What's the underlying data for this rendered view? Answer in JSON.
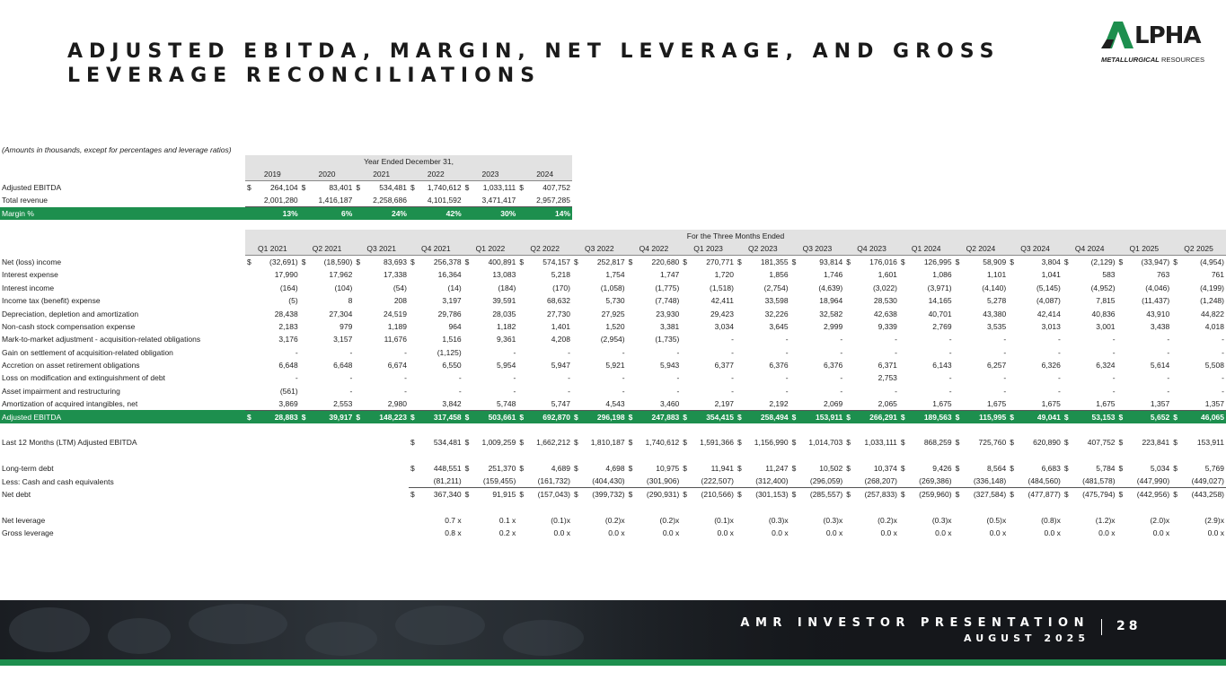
{
  "header": {
    "title": "ADJUSTED EBITDA, MARGIN, NET LEVERAGE, AND GROSS LEVERAGE RECONCILIATIONS",
    "logo_word": "LPHA",
    "logo_sub_bold": "METALLURGICAL",
    "logo_sub_rest": " RESOURCES"
  },
  "note": "(Amounts in thousands, except for percentages and leverage ratios)",
  "annual": {
    "heading": "Year Ended December 31,",
    "years": [
      "2019",
      "2020",
      "2021",
      "2022",
      "2023",
      "2024"
    ],
    "rows": [
      {
        "label": "Adjusted EBITDA",
        "dollar": true,
        "values": [
          "264,104",
          "83,401",
          "534,481",
          "1,740,612",
          "1,033,111",
          "407,752"
        ]
      },
      {
        "label": "Total revenue",
        "dollar": false,
        "values": [
          "2,001,280",
          "1,416,187",
          "2,258,686",
          "4,101,592",
          "3,471,417",
          "2,957,285"
        ]
      }
    ],
    "margin": {
      "label": "Margin %",
      "values": [
        "13%",
        "6%",
        "24%",
        "42%",
        "30%",
        "14%"
      ]
    }
  },
  "quarterly": {
    "heading": "For the Three Months Ended",
    "quarters": [
      "Q1 2021",
      "Q2 2021",
      "Q3 2021",
      "Q4 2021",
      "Q1 2022",
      "Q2 2022",
      "Q3 2022",
      "Q4 2022",
      "Q1 2023",
      "Q2 2023",
      "Q3 2023",
      "Q4 2023",
      "Q1 2024",
      "Q2 2024",
      "Q3 2024",
      "Q4 2024",
      "Q1 2025",
      "Q2 2025"
    ],
    "rows": [
      {
        "label": "Net (loss) income",
        "dollar": true,
        "values": [
          "(32,691)",
          "(18,590)",
          "83,693",
          "256,378",
          "400,891",
          "574,157",
          "252,817",
          "220,680",
          "270,771",
          "181,355",
          "93,814",
          "176,016",
          "126,995",
          "58,909",
          "3,804",
          "(2,129)",
          "(33,947)",
          "(4,954)"
        ]
      },
      {
        "label": "Interest expense",
        "values": [
          "17,990",
          "17,962",
          "17,338",
          "16,364",
          "13,083",
          "5,218",
          "1,754",
          "1,747",
          "1,720",
          "1,856",
          "1,746",
          "1,601",
          "1,086",
          "1,101",
          "1,041",
          "583",
          "763",
          "761"
        ]
      },
      {
        "label": "Interest income",
        "values": [
          "(164)",
          "(104)",
          "(54)",
          "(14)",
          "(184)",
          "(170)",
          "(1,058)",
          "(1,775)",
          "(1,518)",
          "(2,754)",
          "(4,639)",
          "(3,022)",
          "(3,971)",
          "(4,140)",
          "(5,145)",
          "(4,952)",
          "(4,046)",
          "(4,199)"
        ]
      },
      {
        "label": "Income tax (benefit) expense",
        "values": [
          "(5)",
          "8",
          "208",
          "3,197",
          "39,591",
          "68,632",
          "5,730",
          "(7,748)",
          "42,411",
          "33,598",
          "18,964",
          "28,530",
          "14,165",
          "5,278",
          "(4,087)",
          "7,815",
          "(11,437)",
          "(1,248)"
        ]
      },
      {
        "label": "Depreciation, depletion and amortization",
        "values": [
          "28,438",
          "27,304",
          "24,519",
          "29,786",
          "28,035",
          "27,730",
          "27,925",
          "23,930",
          "29,423",
          "32,226",
          "32,582",
          "42,638",
          "40,701",
          "43,380",
          "42,414",
          "40,836",
          "43,910",
          "44,822"
        ]
      },
      {
        "label": "Non-cash stock compensation expense",
        "values": [
          "2,183",
          "979",
          "1,189",
          "964",
          "1,182",
          "1,401",
          "1,520",
          "3,381",
          "3,034",
          "3,645",
          "2,999",
          "9,339",
          "2,769",
          "3,535",
          "3,013",
          "3,001",
          "3,438",
          "4,018"
        ]
      },
      {
        "label": "Mark-to-market adjustment - acquisition-related obligations",
        "values": [
          "3,176",
          "3,157",
          "11,676",
          "1,516",
          "9,361",
          "4,208",
          "(2,954)",
          "(1,735)",
          "-",
          "-",
          "-",
          "-",
          "-",
          "-",
          "-",
          "-",
          "-",
          "-"
        ]
      },
      {
        "label": "Gain on settlement of acquisition-related obligation",
        "values": [
          "-",
          "-",
          "-",
          "(1,125)",
          "-",
          "-",
          "-",
          "-",
          "-",
          "-",
          "-",
          "-",
          "-",
          "-",
          "-",
          "-",
          "-",
          "-"
        ]
      },
      {
        "label": "Accretion on asset retirement obligations",
        "values": [
          "6,648",
          "6,648",
          "6,674",
          "6,550",
          "5,954",
          "5,947",
          "5,921",
          "5,943",
          "6,377",
          "6,376",
          "6,376",
          "6,371",
          "6,143",
          "6,257",
          "6,326",
          "6,324",
          "5,614",
          "5,508"
        ]
      },
      {
        "label": "Loss on modification and extinguishment of debt",
        "values": [
          "-",
          "-",
          "-",
          "-",
          "-",
          "-",
          "-",
          "-",
          "-",
          "-",
          "-",
          "2,753",
          "-",
          "-",
          "-",
          "-",
          "-",
          "-"
        ]
      },
      {
        "label": "Asset impairment and restructuring",
        "values": [
          "(561)",
          "-",
          "-",
          "-",
          "-",
          "-",
          "-",
          "-",
          "-",
          "-",
          "-",
          "-",
          "-",
          "-",
          "-",
          "-",
          "-",
          "-"
        ]
      },
      {
        "label": "Amortization of acquired intangibles, net",
        "values": [
          "3,869",
          "2,553",
          "2,980",
          "3,842",
          "5,748",
          "5,747",
          "4,543",
          "3,460",
          "2,197",
          "2,192",
          "2,069",
          "2,065",
          "1,675",
          "1,675",
          "1,675",
          "1,675",
          "1,357",
          "1,357"
        ]
      }
    ],
    "ebitda": {
      "label": "Adjusted EBITDA",
      "values": [
        "28,883",
        "39,917",
        "148,223",
        "317,458",
        "503,661",
        "692,870",
        "296,198",
        "247,883",
        "354,415",
        "258,494",
        "153,911",
        "266,291",
        "189,563",
        "115,995",
        "49,041",
        "53,153",
        "5,652",
        "46,065"
      ]
    },
    "ltm": {
      "label": "Last 12 Months (LTM) Adjusted EBITDA",
      "values": [
        "",
        "",
        "",
        "534,481",
        "1,009,259",
        "1,662,212",
        "1,810,187",
        "1,740,612",
        "1,591,366",
        "1,156,990",
        "1,014,703",
        "1,033,111",
        "868,259",
        "725,760",
        "620,890",
        "407,752",
        "223,841",
        "153,911"
      ]
    },
    "ltd": {
      "label": "Long-term debt",
      "values": [
        "",
        "",
        "",
        "448,551",
        "251,370",
        "4,689",
        "4,698",
        "10,975",
        "11,941",
        "11,247",
        "10,502",
        "10,374",
        "9,426",
        "8,564",
        "6,683",
        "5,784",
        "5,034",
        "5,769"
      ]
    },
    "cash": {
      "label": "Less: Cash and cash equivalents",
      "values": [
        "",
        "",
        "",
        "(81,211)",
        "(159,455)",
        "(161,732)",
        "(404,430)",
        "(301,906)",
        "(222,507)",
        "(312,400)",
        "(296,059)",
        "(268,207)",
        "(269,386)",
        "(336,148)",
        "(484,560)",
        "(481,578)",
        "(447,990)",
        "(449,027)"
      ]
    },
    "netdebt": {
      "label": "Net debt",
      "values": [
        "",
        "",
        "",
        "367,340",
        "91,915",
        "(157,043)",
        "(399,732)",
        "(290,931)",
        "(210,566)",
        "(301,153)",
        "(285,557)",
        "(257,833)",
        "(259,960)",
        "(327,584)",
        "(477,877)",
        "(475,794)",
        "(442,956)",
        "(443,258)"
      ]
    },
    "netlev": {
      "label": "Net leverage",
      "values": [
        "",
        "",
        "",
        "0.7 x",
        "0.1 x",
        "(0.1)x",
        "(0.2)x",
        "(0.2)x",
        "(0.1)x",
        "(0.3)x",
        "(0.3)x",
        "(0.2)x",
        "(0.3)x",
        "(0.5)x",
        "(0.8)x",
        "(1.2)x",
        "(2.0)x",
        "(2.9)x"
      ]
    },
    "grosslev": {
      "label": "Gross leverage",
      "values": [
        "",
        "",
        "",
        "0.8 x",
        "0.2 x",
        "0.0 x",
        "0.0 x",
        "0.0 x",
        "0.0 x",
        "0.0 x",
        "0.0 x",
        "0.0 x",
        "0.0 x",
        "0.0 x",
        "0.0 x",
        "0.0 x",
        "0.0 x",
        "0.0 x"
      ]
    }
  },
  "footer": {
    "line1": "AMR INVESTOR PRESENTATION",
    "line2": "AUGUST 2025",
    "page": "28"
  },
  "colors": {
    "green": "#1d8f4e",
    "band": "#e2e2e2",
    "dark": "#1a1d22"
  }
}
